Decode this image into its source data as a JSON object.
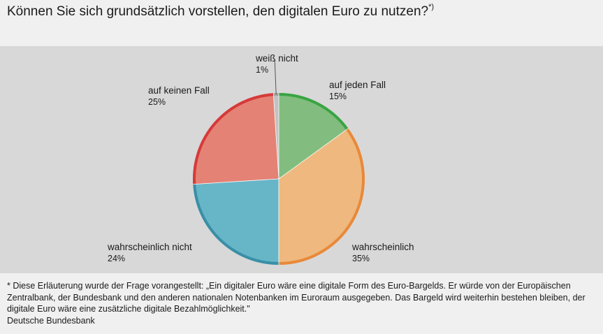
{
  "title": {
    "text": "Können Sie sich grundsätzlich vorstellen, den digitalen Euro zu nutzen?",
    "marker": "*)"
  },
  "chart_data": {
    "type": "pie",
    "start_angle_deg": 0,
    "direction": "clockwise",
    "slices": [
      {
        "label": "auf jeden Fall",
        "value": 15,
        "value_label": "15%",
        "fill": "#82bd7f",
        "edge": "#3aa443"
      },
      {
        "label": "wahrscheinlich",
        "value": 35,
        "value_label": "35%",
        "fill": "#efb87e",
        "edge": "#e8893a"
      },
      {
        "label": "wahrscheinlich nicht",
        "value": 24,
        "value_label": "24%",
        "fill": "#67b6c8",
        "edge": "#3a8fa6"
      },
      {
        "label": "auf keinen Fall",
        "value": 25,
        "value_label": "25%",
        "fill": "#e48275",
        "edge": "#d63a3a"
      },
      {
        "label": "weiß nicht",
        "value": 1,
        "value_label": "1%",
        "fill": "#c2c2c2",
        "edge": "#a0a0a0"
      }
    ]
  },
  "footnote": {
    "text": "* Diese Erläuterung wurde der Frage vorangestellt: „Ein digitaler Euro wäre eine digitale Form des Euro-Bargelds. Er würde von der Europäischen Zentralbank, der Bundesbank und den anderen nationalen Notenbanken im Euroraum ausgegeben. Das Bargeld wird weiterhin bestehen bleiben, der digitale Euro wäre eine zusätzliche digitale Bezahlmöglichkeit.\"",
    "source": "Deutsche Bundesbank"
  }
}
